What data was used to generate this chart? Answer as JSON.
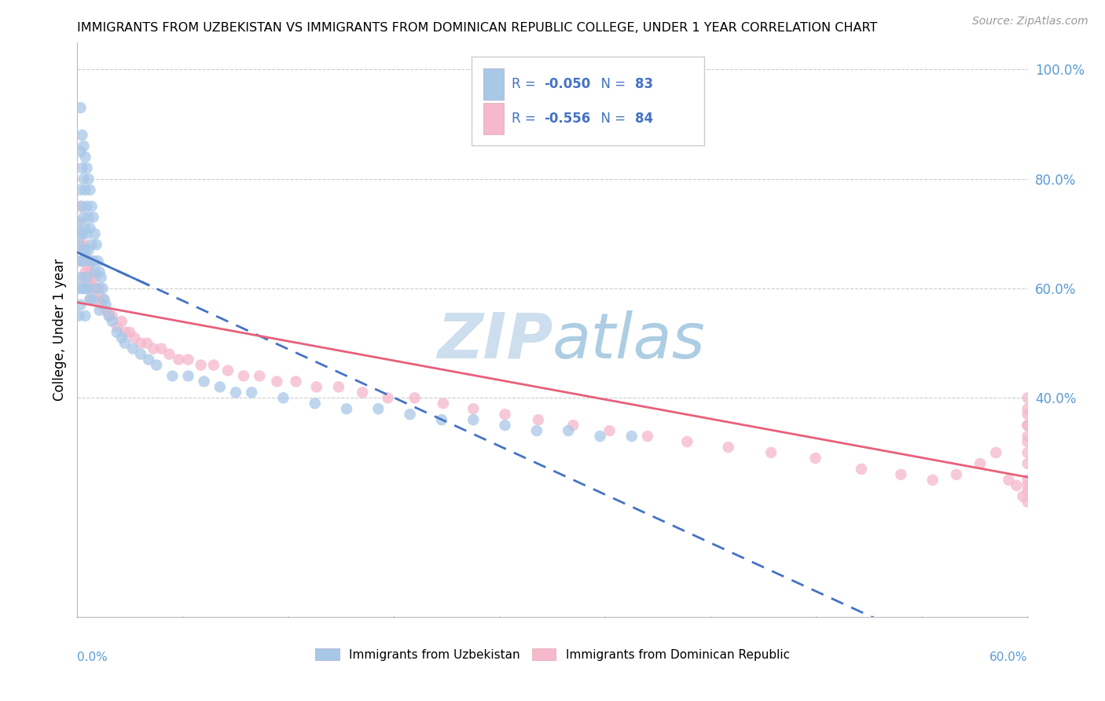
{
  "title": "IMMIGRANTS FROM UZBEKISTAN VS IMMIGRANTS FROM DOMINICAN REPUBLIC COLLEGE, UNDER 1 YEAR CORRELATION CHART",
  "source": "Source: ZipAtlas.com",
  "ylabel": "College, Under 1 year",
  "R1": -0.05,
  "N1": 83,
  "R2": -0.556,
  "N2": 84,
  "color_uzb": "#a8c8e8",
  "color_dom": "#f5b8cc",
  "color_uzb_line": "#4472c4",
  "color_dom_line": "#e8607a",
  "legend_text_color": "#4472c4",
  "watermark_color": "#c8dcf0",
  "background_color": "#ffffff",
  "grid_color": "#cccccc",
  "right_axis_color": "#5b9bd5",
  "legend_label1": "Immigrants from Uzbekistan",
  "legend_label2": "Immigrants from Dominican Republic",
  "xlim": [
    0.0,
    0.6
  ],
  "ylim": [
    0.0,
    1.05
  ],
  "y_ticks_right": [
    0.4,
    0.6,
    0.8,
    1.0
  ],
  "y_tick_labels_right": [
    "40.0%",
    "60.0%",
    "80.0%",
    "100.0%"
  ],
  "uzb_x": [
    0.001,
    0.001,
    0.001,
    0.001,
    0.001,
    0.002,
    0.002,
    0.002,
    0.002,
    0.002,
    0.002,
    0.003,
    0.003,
    0.003,
    0.003,
    0.003,
    0.003,
    0.004,
    0.004,
    0.004,
    0.004,
    0.004,
    0.005,
    0.005,
    0.005,
    0.005,
    0.005,
    0.005,
    0.006,
    0.006,
    0.006,
    0.006,
    0.007,
    0.007,
    0.007,
    0.007,
    0.008,
    0.008,
    0.008,
    0.008,
    0.009,
    0.009,
    0.01,
    0.01,
    0.01,
    0.011,
    0.011,
    0.012,
    0.012,
    0.013,
    0.014,
    0.014,
    0.015,
    0.016,
    0.017,
    0.018,
    0.02,
    0.022,
    0.025,
    0.028,
    0.03,
    0.035,
    0.04,
    0.045,
    0.05,
    0.06,
    0.07,
    0.08,
    0.09,
    0.1,
    0.11,
    0.13,
    0.15,
    0.17,
    0.19,
    0.21,
    0.23,
    0.25,
    0.27,
    0.29,
    0.31,
    0.33,
    0.35
  ],
  "uzb_y": [
    0.72,
    0.65,
    0.68,
    0.55,
    0.6,
    0.93,
    0.78,
    0.85,
    0.7,
    0.62,
    0.57,
    0.88,
    0.75,
    0.82,
    0.7,
    0.65,
    0.6,
    0.86,
    0.8,
    0.73,
    0.67,
    0.6,
    0.84,
    0.78,
    0.71,
    0.67,
    0.6,
    0.55,
    0.82,
    0.75,
    0.7,
    0.62,
    0.8,
    0.73,
    0.67,
    0.6,
    0.78,
    0.71,
    0.65,
    0.58,
    0.75,
    0.68,
    0.73,
    0.65,
    0.58,
    0.7,
    0.63,
    0.68,
    0.6,
    0.65,
    0.63,
    0.56,
    0.62,
    0.6,
    0.58,
    0.57,
    0.55,
    0.54,
    0.52,
    0.51,
    0.5,
    0.49,
    0.48,
    0.47,
    0.46,
    0.44,
    0.44,
    0.43,
    0.42,
    0.41,
    0.41,
    0.4,
    0.39,
    0.38,
    0.38,
    0.37,
    0.36,
    0.36,
    0.35,
    0.34,
    0.34,
    0.33,
    0.33
  ],
  "dom_x": [
    0.001,
    0.002,
    0.002,
    0.003,
    0.003,
    0.004,
    0.004,
    0.005,
    0.005,
    0.006,
    0.006,
    0.007,
    0.007,
    0.008,
    0.008,
    0.009,
    0.01,
    0.01,
    0.011,
    0.012,
    0.013,
    0.014,
    0.015,
    0.016,
    0.018,
    0.02,
    0.022,
    0.025,
    0.028,
    0.03,
    0.033,
    0.036,
    0.04,
    0.044,
    0.048,
    0.053,
    0.058,
    0.064,
    0.07,
    0.078,
    0.086,
    0.095,
    0.105,
    0.115,
    0.126,
    0.138,
    0.151,
    0.165,
    0.18,
    0.196,
    0.213,
    0.231,
    0.25,
    0.27,
    0.291,
    0.313,
    0.336,
    0.36,
    0.385,
    0.411,
    0.438,
    0.466,
    0.495,
    0.52,
    0.54,
    0.555,
    0.57,
    0.58,
    0.588,
    0.593,
    0.597,
    0.6,
    0.6,
    0.6,
    0.6,
    0.6,
    0.6,
    0.6,
    0.6,
    0.6,
    0.6,
    0.6,
    0.6,
    0.6
  ],
  "dom_y": [
    0.72,
    0.75,
    0.68,
    0.7,
    0.65,
    0.68,
    0.62,
    0.66,
    0.63,
    0.65,
    0.6,
    0.64,
    0.61,
    0.63,
    0.58,
    0.62,
    0.65,
    0.6,
    0.62,
    0.6,
    0.58,
    0.6,
    0.57,
    0.58,
    0.56,
    0.55,
    0.55,
    0.53,
    0.54,
    0.52,
    0.52,
    0.51,
    0.5,
    0.5,
    0.49,
    0.49,
    0.48,
    0.47,
    0.47,
    0.46,
    0.46,
    0.45,
    0.44,
    0.44,
    0.43,
    0.43,
    0.42,
    0.42,
    0.41,
    0.4,
    0.4,
    0.39,
    0.38,
    0.37,
    0.36,
    0.35,
    0.34,
    0.33,
    0.32,
    0.31,
    0.3,
    0.29,
    0.27,
    0.26,
    0.25,
    0.26,
    0.28,
    0.3,
    0.25,
    0.24,
    0.22,
    0.37,
    0.35,
    0.4,
    0.32,
    0.24,
    0.21,
    0.38,
    0.33,
    0.28,
    0.23,
    0.35,
    0.3,
    0.25
  ]
}
